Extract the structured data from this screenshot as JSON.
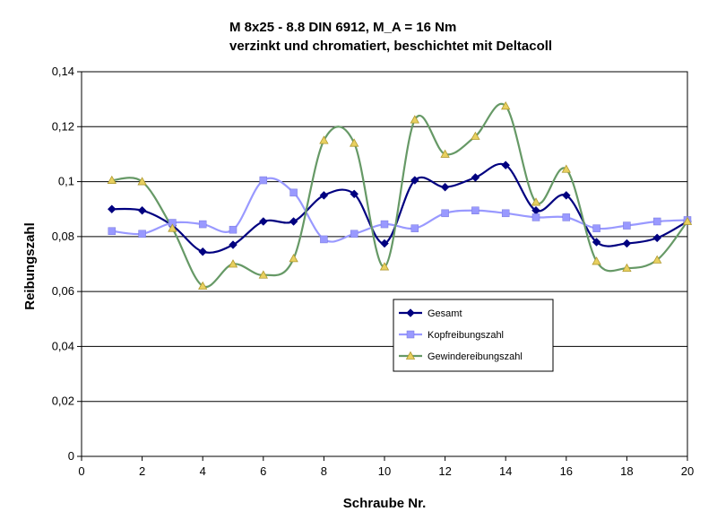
{
  "chart_data": {
    "type": "line",
    "title": "M 8x25 - 8.8 DIN 6912,  M_A = 16 Nm",
    "subtitle": "verzinkt und chromatiert, beschichtet mit Deltacoll",
    "xlabel": "Schraube Nr.",
    "ylabel": "Reibungszahl",
    "xlim": [
      0,
      20
    ],
    "ylim": [
      0,
      0.14
    ],
    "xticks": [
      "0",
      "2",
      "4",
      "6",
      "8",
      "10",
      "12",
      "14",
      "16",
      "18",
      "20"
    ],
    "yticks": [
      "0",
      "0,02",
      "0,04",
      "0,06",
      "0,08",
      "0,1",
      "0,12",
      "0,14"
    ],
    "grid": "horizontal",
    "legend_position": "center-right",
    "x": [
      1,
      2,
      3,
      4,
      5,
      6,
      7,
      8,
      9,
      10,
      11,
      12,
      13,
      14,
      15,
      16,
      17,
      18,
      19,
      20
    ],
    "series": [
      {
        "name": "Gesamt",
        "color": "#000080",
        "marker": "diamond",
        "values": [
          0.09,
          0.0895,
          0.084,
          0.0745,
          0.077,
          0.0855,
          0.0855,
          0.095,
          0.0955,
          0.0775,
          0.1005,
          0.098,
          0.1015,
          0.106,
          0.0895,
          0.095,
          0.078,
          0.0775,
          0.0795,
          0.0855
        ]
      },
      {
        "name": "Kopfreibungszahl",
        "color": "#9999FF",
        "marker": "square",
        "values": [
          0.082,
          0.081,
          0.085,
          0.0845,
          0.0825,
          0.1005,
          0.096,
          0.079,
          0.081,
          0.0845,
          0.083,
          0.0885,
          0.0895,
          0.0885,
          0.087,
          0.087,
          0.083,
          0.084,
          0.0855,
          0.086
        ]
      },
      {
        "name": "Gewindereibungszahl",
        "color": "#669966",
        "marker": "triangle",
        "values": [
          0.1005,
          0.1,
          0.083,
          0.062,
          0.07,
          0.066,
          0.072,
          0.115,
          0.114,
          0.069,
          0.1225,
          0.11,
          0.1165,
          0.1275,
          0.0925,
          0.1045,
          0.071,
          0.0685,
          0.0715,
          0.0855
        ]
      }
    ]
  }
}
